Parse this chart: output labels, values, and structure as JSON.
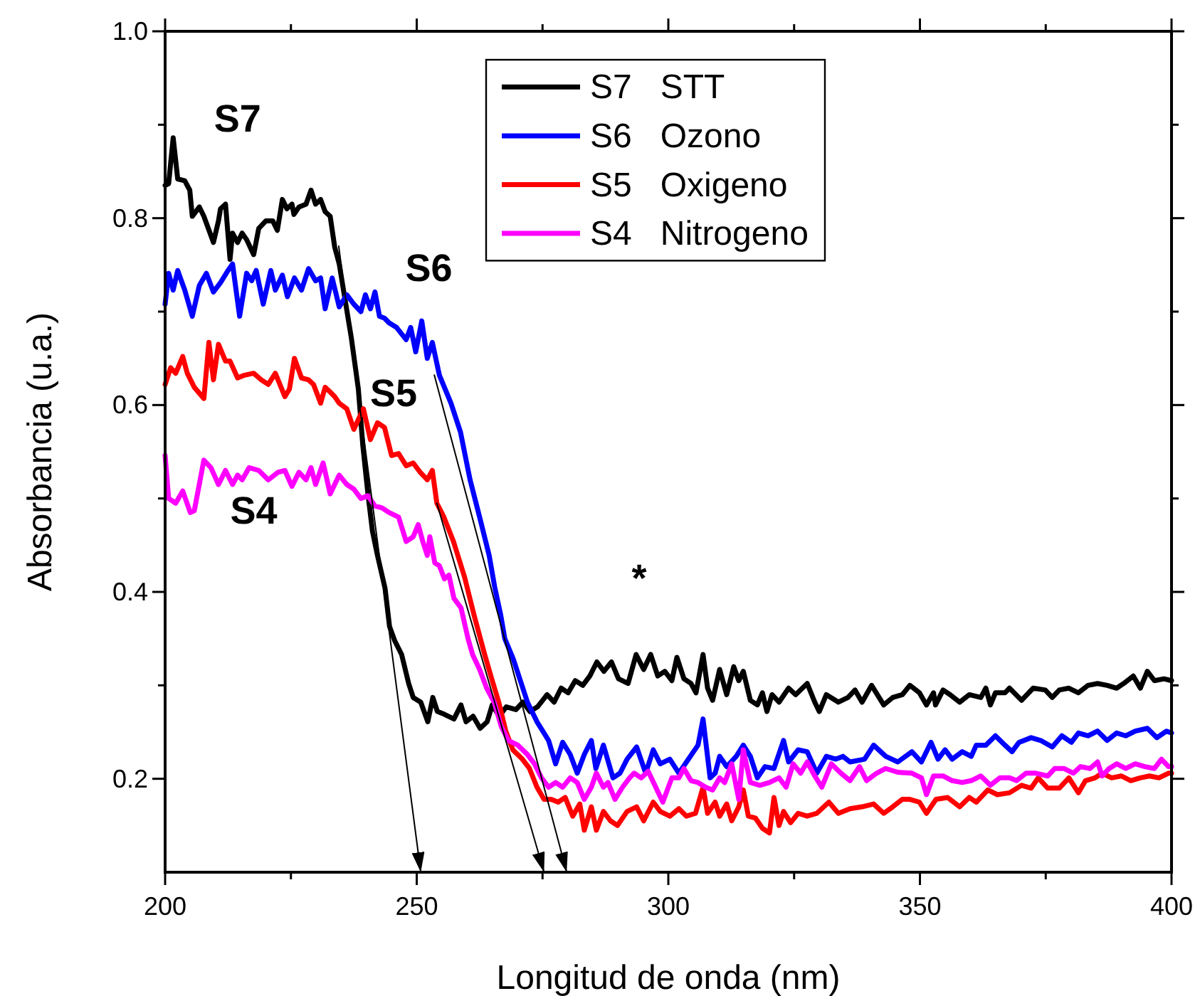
{
  "chart_data": {
    "type": "line",
    "xlabel": "Longitud de onda (nm)",
    "ylabel": "Absorbancia (u.a.)",
    "xlim": [
      200,
      400
    ],
    "ylim": [
      0.1,
      1.0
    ],
    "xticks": [
      200,
      {
        "value": 225,
        "label": null
      },
      250,
      {
        "value": 275,
        "label": null
      },
      300,
      {
        "value": 325,
        "label": null
      },
      350,
      {
        "value": 375,
        "label": null
      },
      400
    ],
    "yticks": [
      0.2,
      {
        "value": 0.3,
        "label": null
      },
      0.4,
      {
        "value": 0.5,
        "label": null
      },
      0.6,
      {
        "value": 0.7,
        "label": null
      },
      0.8,
      {
        "value": 0.9,
        "label": null
      },
      {
        "value": 1.0,
        "label": "1.0"
      }
    ],
    "legend": "top",
    "series": [
      {
        "name": "S7   STT",
        "color": "#000000",
        "x": [
          200,
          200.7,
          201.6,
          202.5,
          203.9,
          204.9,
          205.4,
          206.8,
          207.7,
          209.6,
          210.6,
          211,
          212,
          212.9,
          213.4,
          214.4,
          215.3,
          216.2,
          217.6,
          218.6,
          220,
          221.4,
          222.3,
          223.3,
          224.2,
          225.2,
          225.6,
          226.6,
          228,
          229,
          229.9,
          230.9,
          231.8,
          232.8,
          233.7,
          234.6,
          235.6,
          237,
          238.4,
          239.3,
          240.3,
          241.2,
          242.2,
          243.7,
          244.6,
          245.6,
          247,
          248.4,
          249.3,
          250.8,
          252.2,
          253.2,
          254.1,
          255.5,
          257.4,
          258.8,
          259.8,
          261.2,
          262.6,
          264,
          265,
          266.4,
          267.8,
          269.7,
          271.1,
          272.5,
          274,
          275.9,
          277.3,
          278.7,
          280.1,
          281.5,
          283,
          284.4,
          285.8,
          287.2,
          288.7,
          290.1,
          292,
          293.6,
          295.1,
          296.5,
          297.9,
          299.3,
          300.7,
          301.7,
          303.1,
          304.5,
          305.5,
          306.9,
          307.8,
          308.8,
          310.2,
          311.6,
          313,
          314,
          314.9,
          316.3,
          317.7,
          318.7,
          319.6,
          320.6,
          322,
          323.9,
          325.3,
          327.6,
          329.1,
          330,
          331.4,
          333.8,
          335.7,
          337.1,
          338.5,
          340.4,
          342.8,
          344.6,
          346.5,
          348,
          349.9,
          351.3,
          352.7,
          353.1,
          354.6,
          356,
          357.9,
          359.8,
          362.1,
          363.1,
          364,
          365,
          366.9,
          367.8,
          370.2,
          372.5,
          374.9,
          376.3,
          377.7,
          379.6,
          381.5,
          383.4,
          385.3,
          387.2,
          389.1,
          390.5,
          392.4,
          393.8,
          395.2,
          396.6,
          398.5,
          400
        ],
        "values": [
          0.835,
          0.837,
          0.886,
          0.842,
          0.84,
          0.83,
          0.802,
          0.812,
          0.802,
          0.774,
          0.797,
          0.81,
          0.815,
          0.756,
          0.784,
          0.774,
          0.784,
          0.777,
          0.761,
          0.789,
          0.797,
          0.797,
          0.787,
          0.82,
          0.81,
          0.815,
          0.804,
          0.812,
          0.815,
          0.83,
          0.815,
          0.82,
          0.807,
          0.802,
          0.769,
          0.751,
          0.718,
          0.672,
          0.617,
          0.556,
          0.505,
          0.465,
          0.439,
          0.404,
          0.363,
          0.348,
          0.333,
          0.302,
          0.287,
          0.282,
          0.261,
          0.287,
          0.272,
          0.269,
          0.264,
          0.279,
          0.261,
          0.267,
          0.254,
          0.261,
          0.279,
          0.267,
          0.277,
          0.274,
          0.282,
          0.272,
          0.277,
          0.29,
          0.282,
          0.297,
          0.292,
          0.305,
          0.3,
          0.31,
          0.325,
          0.315,
          0.325,
          0.307,
          0.302,
          0.333,
          0.317,
          0.333,
          0.31,
          0.315,
          0.305,
          0.33,
          0.307,
          0.302,
          0.292,
          0.333,
          0.297,
          0.284,
          0.317,
          0.29,
          0.32,
          0.305,
          0.315,
          0.284,
          0.279,
          0.292,
          0.272,
          0.29,
          0.282,
          0.297,
          0.29,
          0.302,
          0.282,
          0.272,
          0.29,
          0.282,
          0.287,
          0.295,
          0.282,
          0.3,
          0.279,
          0.287,
          0.29,
          0.3,
          0.292,
          0.279,
          0.292,
          0.279,
          0.295,
          0.29,
          0.282,
          0.29,
          0.287,
          0.297,
          0.279,
          0.292,
          0.292,
          0.297,
          0.284,
          0.297,
          0.295,
          0.287,
          0.295,
          0.297,
          0.292,
          0.3,
          0.302,
          0.3,
          0.297,
          0.302,
          0.31,
          0.297,
          0.315,
          0.305,
          0.307,
          0.305
        ]
      },
      {
        "name": "S6   Ozono",
        "color": "#0000ff",
        "x": [
          200,
          200.7,
          201.6,
          202.5,
          203.9,
          205.4,
          206.8,
          208.2,
          209.6,
          211,
          212.5,
          213.4,
          214.8,
          216.2,
          217.2,
          218.1,
          219.5,
          221,
          221.9,
          223.3,
          224.3,
          225.7,
          227.1,
          228.5,
          229.9,
          230.9,
          231.8,
          233.2,
          234.6,
          236.1,
          237.5,
          238.9,
          239.8,
          240.8,
          241.7,
          242.6,
          243.6,
          244.5,
          246,
          247.9,
          248.8,
          249.8,
          251,
          252.1,
          253.1,
          254.5,
          256.8,
          258.7,
          260.6,
          262.5,
          264.4,
          265.5,
          266.7,
          267.5,
          269.2,
          272,
          273.9,
          276.2,
          277.6,
          279,
          280.5,
          281.9,
          283.3,
          284.7,
          285.6,
          287.1,
          289,
          290.4,
          291.8,
          293.7,
          295.5,
          297,
          298.4,
          300.3,
          302.1,
          304,
          305.9,
          306.9,
          308.3,
          309.3,
          310.2,
          311.6,
          313.5,
          314.9,
          316.3,
          317.7,
          319.2,
          321,
          322.9,
          323.9,
          325.8,
          327.6,
          329.5,
          331.4,
          333.3,
          334.7,
          336.1,
          339,
          340.8,
          343.2,
          345.6,
          348.4,
          350.3,
          352.2,
          353.6,
          355,
          356.4,
          358.4,
          360.2,
          361.2,
          363.1,
          365,
          366.9,
          368.3,
          369.7,
          372.1,
          374,
          376.3,
          378.2,
          380.1,
          381.5,
          383.4,
          385.3,
          387.2,
          389.1,
          390.9,
          392.8,
          395.2,
          397.1,
          399,
          400
        ],
        "values": [
          0.708,
          0.741,
          0.723,
          0.744,
          0.723,
          0.695,
          0.728,
          0.741,
          0.721,
          0.731,
          0.744,
          0.751,
          0.695,
          0.741,
          0.733,
          0.744,
          0.708,
          0.744,
          0.723,
          0.739,
          0.716,
          0.736,
          0.723,
          0.746,
          0.733,
          0.736,
          0.703,
          0.736,
          0.705,
          0.718,
          0.708,
          0.7,
          0.718,
          0.703,
          0.721,
          0.695,
          0.693,
          0.688,
          0.683,
          0.67,
          0.683,
          0.657,
          0.69,
          0.65,
          0.667,
          0.632,
          0.602,
          0.571,
          0.52,
          0.48,
          0.439,
          0.405,
          0.375,
          0.35,
          0.328,
          0.282,
          0.261,
          0.241,
          0.216,
          0.239,
          0.226,
          0.206,
          0.226,
          0.241,
          0.211,
          0.236,
          0.201,
          0.206,
          0.221,
          0.234,
          0.206,
          0.231,
          0.216,
          0.221,
          0.206,
          0.221,
          0.236,
          0.264,
          0.201,
          0.206,
          0.224,
          0.213,
          0.224,
          0.236,
          0.224,
          0.201,
          0.213,
          0.211,
          0.241,
          0.218,
          0.231,
          0.229,
          0.206,
          0.224,
          0.221,
          0.224,
          0.218,
          0.221,
          0.236,
          0.224,
          0.218,
          0.229,
          0.218,
          0.239,
          0.221,
          0.231,
          0.221,
          0.229,
          0.224,
          0.236,
          0.236,
          0.246,
          0.236,
          0.229,
          0.239,
          0.244,
          0.241,
          0.234,
          0.246,
          0.239,
          0.249,
          0.246,
          0.251,
          0.241,
          0.249,
          0.246,
          0.251,
          0.254,
          0.244,
          0.251,
          0.249
        ]
      },
      {
        "name": "S5   Oxigeno",
        "color": "#ff0000",
        "x": [
          200,
          201.1,
          202.1,
          203.5,
          204.4,
          205.8,
          207.7,
          208.7,
          209.6,
          210.6,
          212,
          212.9,
          214.4,
          215.8,
          217.6,
          219.1,
          220.5,
          221.9,
          223.8,
          224.7,
          225.7,
          227.1,
          228.5,
          229.5,
          230.9,
          231.8,
          232.8,
          233.7,
          234.6,
          236.1,
          237.5,
          239.4,
          240.8,
          242.2,
          243.6,
          245,
          246.4,
          247.9,
          249.3,
          250.7,
          252.1,
          253.1,
          254,
          255.4,
          257.3,
          259.5,
          261.4,
          263.5,
          264.9,
          266.3,
          267.7,
          269.1,
          271,
          272.4,
          273.9,
          275.3,
          276.7,
          278.1,
          279.5,
          281,
          282.4,
          283.3,
          284.7,
          285.7,
          287.1,
          288.5,
          289.9,
          291.8,
          293.7,
          295.1,
          297,
          298.4,
          300.3,
          302.1,
          303.6,
          305.4,
          306.9,
          307.8,
          309.3,
          310.2,
          311.6,
          312.6,
          314,
          314.9,
          315.9,
          317.3,
          318.7,
          320.1,
          321,
          322,
          322.9,
          324.3,
          325.8,
          327.6,
          329.5,
          331.9,
          333.8,
          336.1,
          338.5,
          340.8,
          342.8,
          344.6,
          346.5,
          348,
          349.9,
          351.3,
          353.2,
          355.5,
          357.9,
          359.8,
          361.2,
          363.5,
          365.4,
          367.8,
          370.2,
          372.1,
          373.5,
          375.4,
          377.7,
          379.6,
          381.5,
          382.9,
          384.8,
          386.2,
          388.1,
          390,
          391.9,
          393.8,
          395.6,
          397.5,
          399.4,
          400
        ],
        "values": [
          0.622,
          0.64,
          0.634,
          0.652,
          0.634,
          0.619,
          0.607,
          0.667,
          0.627,
          0.665,
          0.647,
          0.647,
          0.629,
          0.632,
          0.634,
          0.627,
          0.622,
          0.634,
          0.609,
          0.617,
          0.65,
          0.629,
          0.627,
          0.622,
          0.602,
          0.619,
          0.614,
          0.609,
          0.602,
          0.596,
          0.574,
          0.596,
          0.563,
          0.581,
          0.576,
          0.546,
          0.548,
          0.535,
          0.538,
          0.528,
          0.52,
          0.53,
          0.495,
          0.48,
          0.454,
          0.416,
          0.375,
          0.333,
          0.307,
          0.282,
          0.251,
          0.231,
          0.221,
          0.211,
          0.191,
          0.178,
          0.178,
          0.175,
          0.18,
          0.16,
          0.173,
          0.145,
          0.17,
          0.145,
          0.165,
          0.155,
          0.15,
          0.165,
          0.17,
          0.155,
          0.175,
          0.165,
          0.16,
          0.168,
          0.16,
          0.163,
          0.191,
          0.163,
          0.175,
          0.16,
          0.173,
          0.155,
          0.17,
          0.188,
          0.16,
          0.158,
          0.147,
          0.142,
          0.18,
          0.15,
          0.165,
          0.153,
          0.163,
          0.16,
          0.163,
          0.175,
          0.163,
          0.168,
          0.17,
          0.173,
          0.163,
          0.17,
          0.178,
          0.178,
          0.175,
          0.163,
          0.178,
          0.18,
          0.17,
          0.18,
          0.175,
          0.188,
          0.183,
          0.185,
          0.193,
          0.19,
          0.201,
          0.19,
          0.19,
          0.201,
          0.185,
          0.198,
          0.201,
          0.206,
          0.201,
          0.203,
          0.198,
          0.201,
          0.203,
          0.201,
          0.206,
          0.206
        ]
      },
      {
        "name": "S4   Nitrogeno",
        "color": "#ff00ff",
        "x": [
          200,
          200.7,
          202.1,
          203.5,
          205,
          205.8,
          207.7,
          209.1,
          210.6,
          212,
          213.4,
          214.4,
          215.3,
          216.7,
          218.6,
          220.5,
          222.4,
          223.8,
          225.2,
          226.6,
          228,
          229,
          229.9,
          231.4,
          232.8,
          234.6,
          236.1,
          237.5,
          238.9,
          240.3,
          241.7,
          243.1,
          244.5,
          246.4,
          247.9,
          249.3,
          250.3,
          251.2,
          252.1,
          252.6,
          253.6,
          254.5,
          255.5,
          256.4,
          257.4,
          258.8,
          260.2,
          261.1,
          262.5,
          263.9,
          265.4,
          266.8,
          268.2,
          270.1,
          272,
          273.4,
          274.8,
          276.2,
          277.6,
          279,
          280.5,
          281.9,
          283.3,
          284.7,
          285.7,
          287.1,
          288,
          289.4,
          290.9,
          292.3,
          293.2,
          294.6,
          296,
          297.5,
          298.9,
          300.7,
          302.1,
          303.1,
          304.5,
          305.9,
          307.4,
          308.8,
          310.2,
          311.2,
          312.6,
          314,
          314.9,
          316.3,
          318.2,
          320.1,
          322,
          323.4,
          324.8,
          326.3,
          327.6,
          329.1,
          330.5,
          332.4,
          334.3,
          336.1,
          338,
          339.4,
          341.4,
          343.2,
          345.6,
          348.4,
          350.3,
          351.3,
          352.7,
          354.6,
          356.4,
          358.4,
          360.2,
          362.1,
          364,
          365.9,
          367.8,
          369.2,
          371.1,
          373,
          375.4,
          376.8,
          378.6,
          380.5,
          381.9,
          383.8,
          385.3,
          386.2,
          387.6,
          389.1,
          390.9,
          392.8,
          394.7,
          396.6,
          398,
          399.4,
          400
        ],
        "values": [
          0.546,
          0.5,
          0.495,
          0.508,
          0.485,
          0.487,
          0.541,
          0.533,
          0.515,
          0.53,
          0.515,
          0.525,
          0.52,
          0.533,
          0.53,
          0.52,
          0.528,
          0.53,
          0.513,
          0.528,
          0.52,
          0.533,
          0.515,
          0.538,
          0.505,
          0.525,
          0.515,
          0.51,
          0.5,
          0.503,
          0.492,
          0.49,
          0.485,
          0.48,
          0.454,
          0.459,
          0.472,
          0.454,
          0.439,
          0.459,
          0.431,
          0.428,
          0.414,
          0.418,
          0.393,
          0.383,
          0.35,
          0.333,
          0.317,
          0.297,
          0.282,
          0.256,
          0.241,
          0.236,
          0.226,
          0.216,
          0.201,
          0.191,
          0.196,
          0.191,
          0.201,
          0.196,
          0.178,
          0.191,
          0.206,
          0.191,
          0.196,
          0.178,
          0.191,
          0.201,
          0.206,
          0.201,
          0.208,
          0.191,
          0.175,
          0.201,
          0.201,
          0.211,
          0.198,
          0.196,
          0.191,
          0.188,
          0.201,
          0.196,
          0.216,
          0.178,
          0.231,
          0.196,
          0.193,
          0.196,
          0.201,
          0.191,
          0.216,
          0.206,
          0.218,
          0.203,
          0.191,
          0.216,
          0.206,
          0.198,
          0.213,
          0.198,
          0.206,
          0.211,
          0.207,
          0.206,
          0.201,
          0.183,
          0.203,
          0.203,
          0.198,
          0.196,
          0.198,
          0.203,
          0.193,
          0.201,
          0.201,
          0.198,
          0.206,
          0.206,
          0.203,
          0.211,
          0.211,
          0.206,
          0.213,
          0.211,
          0.218,
          0.203,
          0.211,
          0.216,
          0.211,
          0.216,
          0.213,
          0.211,
          0.221,
          0.213,
          0.213
        ]
      },
      {
        "color": "#000000",
        "x": [
          234.5,
          250.8
        ],
        "values": [
          0.77,
          0.1
        ]
      },
      {
        "color": "#000000",
        "x": [
          254,
          275.3
        ],
        "values": [
          0.495,
          0.1
        ]
      },
      {
        "color": "#000000",
        "x": [
          253.5,
          279.8
        ],
        "values": [
          0.632,
          0.1
        ]
      }
    ],
    "annotations": [
      "S7",
      "S6",
      "S5",
      "S4",
      "*"
    ]
  }
}
